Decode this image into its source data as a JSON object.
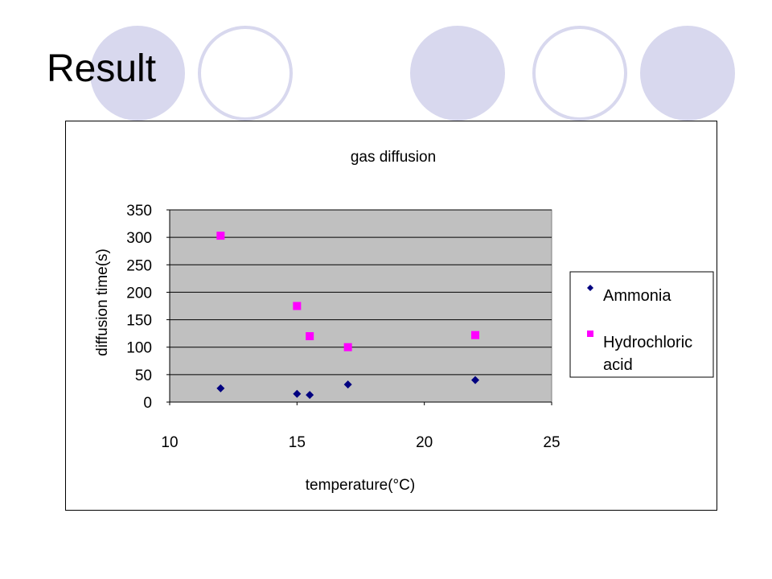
{
  "slide": {
    "title": "Result"
  },
  "colors": {
    "decor": "#d8d8ee",
    "plot_area": "#c0c0c0",
    "ammonia": "#000080",
    "hydrochloric": "#ff00ff"
  },
  "legend": {
    "position": "right"
  },
  "chart_data": {
    "type": "scatter",
    "title": "gas diffusion",
    "xlabel": "temperature(°C)",
    "ylabel": "diffusion time(s)",
    "xlim": [
      10,
      25
    ],
    "ylim": [
      0,
      350
    ],
    "xticks": [
      "10",
      "15",
      "20",
      "25"
    ],
    "yticks": [
      "0",
      "50",
      "100",
      "150",
      "200",
      "250",
      "300",
      "350"
    ],
    "grid": "horizontal",
    "series": [
      {
        "name": "Ammonia",
        "marker": "diamond",
        "color": "#000080",
        "points": [
          [
            12,
            25
          ],
          [
            15,
            15
          ],
          [
            15.5,
            13
          ],
          [
            17,
            32
          ],
          [
            22,
            40
          ]
        ]
      },
      {
        "name": "Hydrochloric acid",
        "marker": "square",
        "color": "#ff00ff",
        "points": [
          [
            12,
            303
          ],
          [
            15,
            175
          ],
          [
            15.5,
            120
          ],
          [
            17,
            100
          ],
          [
            22,
            122
          ]
        ]
      }
    ]
  }
}
